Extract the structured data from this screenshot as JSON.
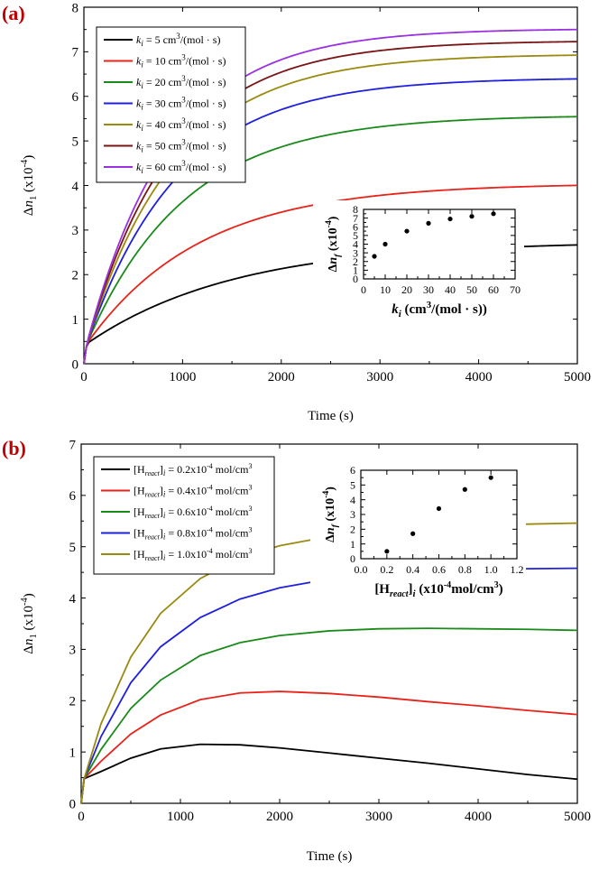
{
  "chart_data": [
    {
      "panel": "(a)",
      "type": "line",
      "xlabel": "Time (s)",
      "ylabel": "Δn1 (x10-4)",
      "xlim": [
        0,
        5000
      ],
      "ylim": [
        0,
        8
      ],
      "xticks": [
        0,
        1000,
        2000,
        3000,
        4000,
        5000
      ],
      "yticks": [
        0,
        1,
        2,
        3,
        4,
        5,
        6,
        7,
        8
      ],
      "legend_position": "top-left",
      "series": [
        {
          "name": "ki = 5 cm3/(mol · s)",
          "k": "5",
          "color": "#000000",
          "start": 0.45,
          "final": 2.75,
          "tau": 1500
        },
        {
          "name": "ki = 10 cm3/(mol · s)",
          "k": "10",
          "color": "#e8231b",
          "start": 0.45,
          "final": 4.05,
          "tau": 1150
        },
        {
          "name": "ki = 20 cm3/(mol · s)",
          "k": "20",
          "color": "#1a8a1a",
          "start": 0.45,
          "final": 5.58,
          "tau": 1000
        },
        {
          "name": "ki = 30 cm3/(mol · s)",
          "k": "30",
          "color": "#1f1fe0",
          "start": 0.45,
          "final": 6.42,
          "tau": 930
        },
        {
          "name": "ki = 40 cm3/(mol · s)",
          "k": "40",
          "color": "#9a8a10",
          "start": 0.45,
          "final": 6.95,
          "tau": 900
        },
        {
          "name": "ki = 50 cm3/(mol · s)",
          "k": "50",
          "color": "#7a1515",
          "start": 0.45,
          "final": 7.25,
          "tau": 870
        },
        {
          "name": "ki = 60 cm3/(mol · s)",
          "k": "60",
          "color": "#9b30e0",
          "start": 0.45,
          "final": 7.52,
          "tau": 850
        }
      ],
      "inset": {
        "type": "scatter",
        "xlabel": "ki (cm3/(mol · s))",
        "ylabel": "Δnf (x10-4)",
        "xlim": [
          0,
          70
        ],
        "ylim": [
          0,
          8
        ],
        "xticks": [
          0,
          10,
          20,
          30,
          40,
          50,
          60,
          70
        ],
        "yticks": [
          0,
          1,
          2,
          3,
          4,
          5,
          6,
          7,
          8
        ],
        "x": [
          5,
          10,
          20,
          30,
          40,
          50,
          60
        ],
        "y": [
          2.6,
          4.0,
          5.5,
          6.4,
          6.9,
          7.2,
          7.5
        ]
      }
    },
    {
      "panel": "(b)",
      "type": "line",
      "xlabel": "Time (s)",
      "ylabel": "Δn1 (x10-4)",
      "xlim": [
        0,
        5000
      ],
      "ylim": [
        0,
        7
      ],
      "xticks": [
        0,
        1000,
        2000,
        3000,
        4000,
        5000
      ],
      "yticks": [
        0,
        1,
        2,
        3,
        4,
        5,
        6,
        7
      ],
      "legend_position": "top-left",
      "series": [
        {
          "name": "[Hreact]i = 0.2x10-4 mol/cm3",
          "conc": "0.2",
          "color": "#000000",
          "points": [
            [
              0,
              0
            ],
            [
              30,
              0.48
            ],
            [
              200,
              0.62
            ],
            [
              500,
              0.88
            ],
            [
              800,
              1.06
            ],
            [
              1200,
              1.15
            ],
            [
              1600,
              1.14
            ],
            [
              2000,
              1.08
            ],
            [
              2500,
              0.98
            ],
            [
              3000,
              0.88
            ],
            [
              3500,
              0.78
            ],
            [
              4000,
              0.67
            ],
            [
              4500,
              0.56
            ],
            [
              5000,
              0.47
            ]
          ]
        },
        {
          "name": "[Hreact]i = 0.4x10-4 mol/cm3",
          "conc": "0.4",
          "color": "#e8231b",
          "points": [
            [
              0,
              0
            ],
            [
              30,
              0.48
            ],
            [
              200,
              0.82
            ],
            [
              500,
              1.35
            ],
            [
              800,
              1.72
            ],
            [
              1200,
              2.02
            ],
            [
              1600,
              2.15
            ],
            [
              2000,
              2.18
            ],
            [
              2500,
              2.14
            ],
            [
              3000,
              2.07
            ],
            [
              3500,
              1.98
            ],
            [
              4000,
              1.9
            ],
            [
              4500,
              1.81
            ],
            [
              5000,
              1.73
            ]
          ]
        },
        {
          "name": "[Hreact]i = 0.6x10-4 mol/cm3",
          "conc": "0.6",
          "color": "#1a8a1a",
          "points": [
            [
              0,
              0
            ],
            [
              30,
              0.48
            ],
            [
              200,
              1.05
            ],
            [
              500,
              1.85
            ],
            [
              800,
              2.4
            ],
            [
              1200,
              2.88
            ],
            [
              1600,
              3.13
            ],
            [
              2000,
              3.27
            ],
            [
              2500,
              3.36
            ],
            [
              3000,
              3.4
            ],
            [
              3500,
              3.41
            ],
            [
              4000,
              3.4
            ],
            [
              4500,
              3.39
            ],
            [
              5000,
              3.37
            ]
          ]
        },
        {
          "name": "[Hreact]i = 0.8x10-4 mol/cm3",
          "conc": "0.8",
          "color": "#1f1fe0",
          "points": [
            [
              0,
              0
            ],
            [
              30,
              0.48
            ],
            [
              200,
              1.3
            ],
            [
              500,
              2.35
            ],
            [
              800,
              3.05
            ],
            [
              1200,
              3.62
            ],
            [
              1600,
              3.98
            ],
            [
              2000,
              4.2
            ],
            [
              2500,
              4.37
            ],
            [
              3000,
              4.46
            ],
            [
              3500,
              4.52
            ],
            [
              4000,
              4.55
            ],
            [
              4500,
              4.57
            ],
            [
              5000,
              4.58
            ]
          ]
        },
        {
          "name": "[Hreact]i = 1.0x10-4 mol/cm3",
          "conc": "1.0",
          "color": "#9a8a10",
          "points": [
            [
              0,
              0
            ],
            [
              30,
              0.48
            ],
            [
              200,
              1.55
            ],
            [
              500,
              2.85
            ],
            [
              800,
              3.7
            ],
            [
              1200,
              4.38
            ],
            [
              1600,
              4.78
            ],
            [
              2000,
              5.02
            ],
            [
              2500,
              5.2
            ],
            [
              3000,
              5.31
            ],
            [
              3500,
              5.38
            ],
            [
              4000,
              5.42
            ],
            [
              4500,
              5.44
            ],
            [
              5000,
              5.46
            ]
          ]
        }
      ],
      "inset": {
        "type": "scatter",
        "xlabel": "[Hreact]i (x10-4mol/cm3)",
        "ylabel": "Δnf (x10-4)",
        "xlim": [
          0,
          1.2
        ],
        "ylim": [
          0,
          6
        ],
        "xticks": [
          "0.0",
          "0.2",
          "0.4",
          "0.6",
          "0.8",
          "1.0",
          "1.2"
        ],
        "yticks": [
          0,
          1,
          2,
          3,
          4,
          5,
          6
        ],
        "x": [
          0.2,
          0.4,
          0.6,
          0.8,
          1.0
        ],
        "y": [
          0.5,
          1.7,
          3.4,
          4.7,
          5.5
        ]
      }
    }
  ]
}
